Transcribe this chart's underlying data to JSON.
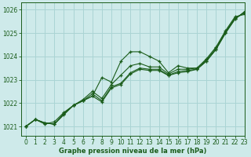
{
  "bg_color": "#ceeaea",
  "grid_color": "#aad4d4",
  "line_color": "#1a5c1a",
  "xlabel": "Graphe pression niveau de la mer (hPa)",
  "xlabel_color": "#1a5c1a",
  "ylim": [
    1020.6,
    1026.3
  ],
  "xlim": [
    -0.5,
    23
  ],
  "yticks": [
    1021,
    1022,
    1023,
    1024,
    1025,
    1026
  ],
  "xticks": [
    0,
    1,
    2,
    3,
    4,
    5,
    6,
    7,
    8,
    9,
    10,
    11,
    12,
    13,
    14,
    15,
    16,
    17,
    18,
    19,
    20,
    21,
    22,
    23
  ],
  "series": [
    [
      1021.0,
      1021.3,
      1021.1,
      1021.2,
      1021.6,
      1021.9,
      1022.1,
      1022.3,
      1023.1,
      1022.9,
      1023.8,
      1024.2,
      1024.2,
      1024.0,
      1023.8,
      1023.3,
      1023.6,
      1023.5,
      1023.5,
      1023.9,
      1024.4,
      1025.1,
      1025.7,
      1025.8
    ],
    [
      1021.0,
      1021.3,
      1021.15,
      1021.1,
      1021.55,
      1021.9,
      1022.15,
      1022.5,
      1022.2,
      1022.8,
      1023.2,
      1023.6,
      1023.7,
      1023.55,
      1023.55,
      1023.25,
      1023.45,
      1023.45,
      1023.5,
      1023.85,
      1024.35,
      1025.05,
      1025.65,
      1025.85
    ],
    [
      1021.0,
      1021.3,
      1021.15,
      1021.1,
      1021.5,
      1021.9,
      1022.1,
      1022.4,
      1022.1,
      1022.7,
      1022.85,
      1023.3,
      1023.5,
      1023.45,
      1023.45,
      1023.2,
      1023.35,
      1023.4,
      1023.45,
      1023.8,
      1024.3,
      1025.0,
      1025.6,
      1025.9
    ],
    [
      1021.0,
      1021.3,
      1021.15,
      1021.1,
      1021.55,
      1021.9,
      1022.1,
      1022.3,
      1022.05,
      1022.65,
      1022.8,
      1023.25,
      1023.45,
      1023.4,
      1023.4,
      1023.18,
      1023.3,
      1023.35,
      1023.45,
      1023.8,
      1024.3,
      1025.0,
      1025.6,
      1025.92
    ]
  ]
}
